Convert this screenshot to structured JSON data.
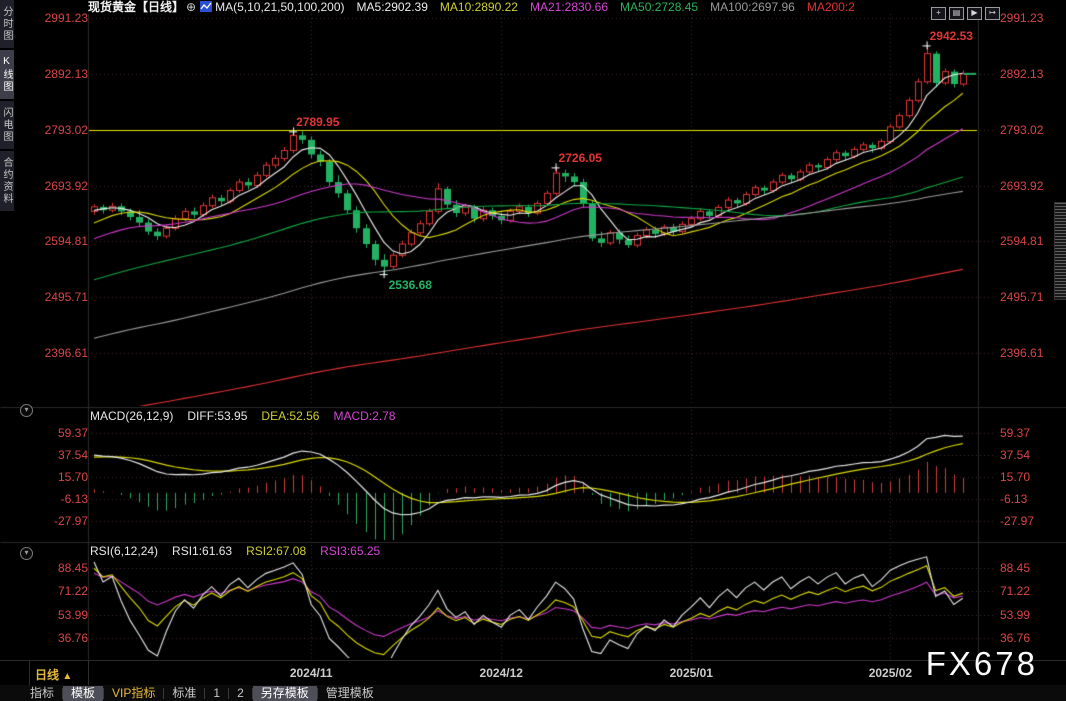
{
  "header": {
    "title": "现货黄金",
    "period_tag": "【日线】",
    "expand_icon": "⊕",
    "ma_params": "MA(5,10,21,50,100,200)",
    "ma_items": [
      {
        "label": "MA5:2902.39",
        "color": "#ededed"
      },
      {
        "label": "MA10:2890.22",
        "color": "#cfcf33"
      },
      {
        "label": "MA21:2830.66",
        "color": "#d645d6"
      },
      {
        "label": "MA50:2728.45",
        "color": "#2db35a"
      },
      {
        "label": "MA100:2697.96",
        "color": "#9a9a9a"
      },
      {
        "label": "MA200:2",
        "color": "#e03232"
      }
    ],
    "window_icons": [
      {
        "name": "crosshair-icon",
        "glyph": "+"
      },
      {
        "name": "axis-scale-icon",
        "glyph": "▤"
      },
      {
        "name": "playback-icon",
        "glyph": "▶"
      },
      {
        "name": "export-icon",
        "glyph": "↦"
      }
    ]
  },
  "sidebar": {
    "tabs": [
      {
        "label": "分时图",
        "active": false
      },
      {
        "label": "K线图",
        "active": true
      },
      {
        "label": "闪电图",
        "active": false
      },
      {
        "label": "合约资料",
        "active": false
      }
    ]
  },
  "macd_panel": {
    "params": "MACD(26,12,9)",
    "diff_label": "DIFF:53.95",
    "dea_label": "DEA:52.56",
    "macd_label": "MACD:2.78"
  },
  "rsi_panel": {
    "params": "RSI(6,12,24)",
    "rsi1_label": "RSI1:61.63",
    "rsi2_label": "RSI2:67.08",
    "rsi3_label": "RSI3:65.25"
  },
  "xaxis": {
    "period_label": "日线",
    "period_arrow": "▲"
  },
  "toolbar": {
    "tabs": [
      {
        "label": "指标",
        "style": "plain"
      },
      {
        "label": "模板",
        "style": "sel"
      },
      {
        "label": "VIP指标",
        "style": "vip"
      },
      {
        "label": "标准",
        "style": "plain"
      },
      {
        "label": "1",
        "style": "plain"
      },
      {
        "label": "2",
        "style": "plain"
      },
      {
        "label": "另存模板",
        "style": "sel"
      },
      {
        "label": "管理模板",
        "style": "plain"
      }
    ]
  },
  "watermark": "FX678",
  "chart_data": {
    "type": "candlestick",
    "symbol": "现货黄金",
    "period": "日线",
    "y_axis": [
      2991.23,
      2892.13,
      2793.02,
      2693.92,
      2594.81,
      2495.71,
      2396.61
    ],
    "macd_axis": [
      59.37,
      37.54,
      15.7,
      -6.13,
      -27.97
    ],
    "rsi_axis": [
      88.45,
      71.22,
      53.99,
      36.76
    ],
    "x_dates": [
      {
        "label": "2024/11",
        "index": 24
      },
      {
        "label": "2024/12",
        "index": 45
      },
      {
        "label": "2025/01",
        "index": 66
      },
      {
        "label": "2025/02",
        "index": 88
      }
    ],
    "hline": {
      "price": 2793.02,
      "color": "#e6e600"
    },
    "last_price": {
      "value": 2892,
      "color": "#22b264"
    },
    "markers": [
      {
        "index": 22,
        "price": 2789.95,
        "label": "2789.95",
        "color": "#e13535",
        "pos": "above"
      },
      {
        "index": 32,
        "price": 2536.68,
        "label": "2536.68",
        "color": "#22b264",
        "pos": "below"
      },
      {
        "index": 51,
        "price": 2726.05,
        "label": "2726.05",
        "color": "#e13535",
        "pos": "above"
      },
      {
        "index": 92,
        "price": 2942.53,
        "label": "2942.53",
        "color": "#e13535",
        "pos": "above"
      }
    ],
    "mas": [
      {
        "period": 5,
        "color": "#ededed"
      },
      {
        "period": 10,
        "color": "#d9d900"
      },
      {
        "period": 21,
        "color": "#cb3acb"
      },
      {
        "period": 50,
        "color": "#11a544"
      },
      {
        "period": 100,
        "color": "#9a9a9a"
      },
      {
        "period": 200,
        "color": "#e03232"
      }
    ],
    "colors": {
      "up": "#e13535",
      "down": "#22b264",
      "grid_h": "#3d2b2b",
      "grid_v": "#333333",
      "frame": "#2a2a2a",
      "macd_bar_up": "#d23b3b",
      "macd_bar_down": "#27ad5f",
      "diff": "#e8e8e8",
      "dea": "#d9d900",
      "macd_line": "#cb3acb",
      "rsi1": "#e8e8e8",
      "rsi2": "#d9d900",
      "rsi3": "#cb3acb"
    },
    "candles": [
      [
        2648,
        2661,
        2642,
        2656
      ],
      [
        2656,
        2660,
        2644,
        2650
      ],
      [
        2650,
        2663,
        2646,
        2657
      ],
      [
        2657,
        2662,
        2641,
        2648
      ],
      [
        2648,
        2653,
        2632,
        2638
      ],
      [
        2638,
        2650,
        2622,
        2628
      ],
      [
        2628,
        2634,
        2606,
        2612
      ],
      [
        2612,
        2618,
        2597,
        2604
      ],
      [
        2604,
        2624,
        2600,
        2618
      ],
      [
        2618,
        2641,
        2614,
        2635
      ],
      [
        2635,
        2654,
        2630,
        2648
      ],
      [
        2648,
        2655,
        2636,
        2642
      ],
      [
        2642,
        2664,
        2638,
        2658
      ],
      [
        2658,
        2678,
        2654,
        2672
      ],
      [
        2672,
        2677,
        2658,
        2666
      ],
      [
        2666,
        2690,
        2662,
        2685
      ],
      [
        2685,
        2706,
        2681,
        2700
      ],
      [
        2700,
        2707,
        2687,
        2694
      ],
      [
        2694,
        2718,
        2690,
        2712
      ],
      [
        2712,
        2736,
        2708,
        2730
      ],
      [
        2730,
        2748,
        2724,
        2742
      ],
      [
        2742,
        2762,
        2737,
        2756
      ],
      [
        2756,
        2789.95,
        2751,
        2783
      ],
      [
        2783,
        2790,
        2768,
        2775
      ],
      [
        2775,
        2781,
        2742,
        2749
      ],
      [
        2749,
        2756,
        2728,
        2736
      ],
      [
        2736,
        2741,
        2693,
        2700
      ],
      [
        2700,
        2712,
        2672,
        2680
      ],
      [
        2680,
        2686,
        2643,
        2650
      ],
      [
        2650,
        2657,
        2610,
        2618
      ],
      [
        2618,
        2625,
        2583,
        2590
      ],
      [
        2590,
        2596,
        2552,
        2562
      ],
      [
        2562,
        2572,
        2536.68,
        2550
      ],
      [
        2550,
        2576,
        2546,
        2570
      ],
      [
        2570,
        2596,
        2566,
        2590
      ],
      [
        2590,
        2616,
        2586,
        2610
      ],
      [
        2610,
        2632,
        2605,
        2626
      ],
      [
        2626,
        2653,
        2622,
        2648
      ],
      [
        2648,
        2698,
        2644,
        2688
      ],
      [
        2688,
        2692,
        2652,
        2660
      ],
      [
        2660,
        2668,
        2638,
        2645
      ],
      [
        2645,
        2662,
        2640,
        2656
      ],
      [
        2656,
        2660,
        2628,
        2635
      ],
      [
        2635,
        2656,
        2630,
        2650
      ],
      [
        2650,
        2655,
        2633,
        2640
      ],
      [
        2640,
        2646,
        2625,
        2632
      ],
      [
        2632,
        2653,
        2628,
        2648
      ],
      [
        2648,
        2662,
        2643,
        2656
      ],
      [
        2656,
        2660,
        2638,
        2645
      ],
      [
        2645,
        2667,
        2641,
        2662
      ],
      [
        2662,
        2685,
        2658,
        2680
      ],
      [
        2680,
        2726.05,
        2676,
        2716
      ],
      [
        2716,
        2722,
        2700,
        2710
      ],
      [
        2710,
        2716,
        2692,
        2700
      ],
      [
        2700,
        2706,
        2655,
        2662
      ],
      [
        2662,
        2668,
        2595,
        2600
      ],
      [
        2600,
        2612,
        2585,
        2592
      ],
      [
        2592,
        2615,
        2588,
        2610
      ],
      [
        2610,
        2616,
        2590,
        2598
      ],
      [
        2598,
        2605,
        2583,
        2588
      ],
      [
        2588,
        2610,
        2584,
        2605
      ],
      [
        2605,
        2620,
        2600,
        2615
      ],
      [
        2615,
        2621,
        2601,
        2608
      ],
      [
        2608,
        2625,
        2604,
        2620
      ],
      [
        2620,
        2626,
        2606,
        2612
      ],
      [
        2612,
        2630,
        2608,
        2625
      ],
      [
        2625,
        2640,
        2620,
        2635
      ],
      [
        2635,
        2653,
        2631,
        2648
      ],
      [
        2648,
        2652,
        2634,
        2640
      ],
      [
        2640,
        2660,
        2636,
        2655
      ],
      [
        2655,
        2673,
        2651,
        2668
      ],
      [
        2668,
        2672,
        2655,
        2662
      ],
      [
        2662,
        2683,
        2658,
        2678
      ],
      [
        2678,
        2695,
        2674,
        2690
      ],
      [
        2690,
        2694,
        2678,
        2685
      ],
      [
        2685,
        2705,
        2681,
        2700
      ],
      [
        2700,
        2717,
        2696,
        2712
      ],
      [
        2712,
        2716,
        2698,
        2705
      ],
      [
        2705,
        2723,
        2701,
        2718
      ],
      [
        2718,
        2735,
        2714,
        2730
      ],
      [
        2730,
        2734,
        2718,
        2726
      ],
      [
        2726,
        2745,
        2722,
        2740
      ],
      [
        2740,
        2757,
        2736,
        2752
      ],
      [
        2752,
        2756,
        2738,
        2746
      ],
      [
        2746,
        2763,
        2742,
        2758
      ],
      [
        2758,
        2771,
        2754,
        2766
      ],
      [
        2766,
        2770,
        2752,
        2760
      ],
      [
        2760,
        2777,
        2756,
        2772
      ],
      [
        2772,
        2803,
        2768,
        2798
      ],
      [
        2798,
        2823,
        2794,
        2818
      ],
      [
        2818,
        2850,
        2814,
        2845
      ],
      [
        2845,
        2884,
        2841,
        2878
      ],
      [
        2878,
        2942.53,
        2874,
        2928
      ],
      [
        2928,
        2932,
        2868,
        2876
      ],
      [
        2876,
        2902,
        2872,
        2896
      ],
      [
        2896,
        2900,
        2868,
        2874
      ],
      [
        2874,
        2898,
        2870,
        2892
      ]
    ]
  }
}
